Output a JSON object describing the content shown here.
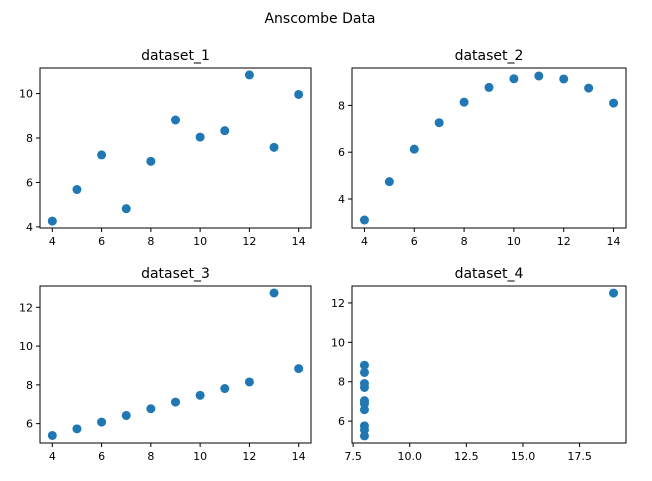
{
  "figure": {
    "title": "Anscombe Data"
  },
  "chart_data": [
    {
      "type": "scatter",
      "title": "dataset_1",
      "x": [
        10,
        8,
        13,
        9,
        11,
        14,
        6,
        4,
        12,
        7,
        5
      ],
      "y": [
        8.04,
        6.95,
        7.58,
        8.81,
        8.33,
        9.96,
        7.24,
        4.26,
        10.84,
        4.82,
        5.68
      ],
      "xlim": [
        3.5,
        14.5
      ],
      "ylim": [
        3.95,
        11.15
      ],
      "xticks": [
        4,
        6,
        8,
        10,
        12,
        14
      ],
      "yticks": [
        4,
        6,
        8,
        10
      ],
      "color": "#1f77b4"
    },
    {
      "type": "scatter",
      "title": "dataset_2",
      "x": [
        10,
        8,
        13,
        9,
        11,
        14,
        6,
        4,
        12,
        7,
        5
      ],
      "y": [
        9.14,
        8.14,
        8.74,
        8.77,
        9.26,
        8.1,
        6.13,
        3.1,
        9.13,
        7.26,
        4.74
      ],
      "xlim": [
        3.5,
        14.5
      ],
      "ylim": [
        2.76,
        9.6
      ],
      "xticks": [
        4,
        6,
        8,
        10,
        12,
        14
      ],
      "yticks": [
        4,
        6,
        8
      ],
      "color": "#1f77b4"
    },
    {
      "type": "scatter",
      "title": "dataset_3",
      "x": [
        10,
        8,
        13,
        9,
        11,
        14,
        6,
        4,
        12,
        7,
        5
      ],
      "y": [
        7.46,
        6.77,
        12.74,
        7.11,
        7.81,
        8.84,
        6.08,
        5.39,
        8.15,
        6.42,
        5.73
      ],
      "xlim": [
        3.5,
        14.5
      ],
      "ylim": [
        5.0,
        13.1
      ],
      "xticks": [
        4,
        6,
        8,
        10,
        12,
        14
      ],
      "yticks": [
        6,
        8,
        10,
        12
      ],
      "color": "#1f77b4"
    },
    {
      "type": "scatter",
      "title": "dataset_4",
      "x": [
        8,
        8,
        8,
        8,
        8,
        8,
        8,
        19,
        8,
        8,
        8
      ],
      "y": [
        6.58,
        5.76,
        7.71,
        8.84,
        8.47,
        7.04,
        5.25,
        12.5,
        5.56,
        7.91,
        6.89
      ],
      "xlim": [
        7.45,
        19.55
      ],
      "ylim": [
        4.89,
        12.86
      ],
      "xticks": [
        7.5,
        10.0,
        12.5,
        15.0,
        17.5
      ],
      "yticks": [
        6,
        8,
        10,
        12
      ],
      "xtick_labels": [
        "7.5",
        "10.0",
        "12.5",
        "15.0",
        "17.5"
      ],
      "color": "#1f77b4"
    }
  ]
}
